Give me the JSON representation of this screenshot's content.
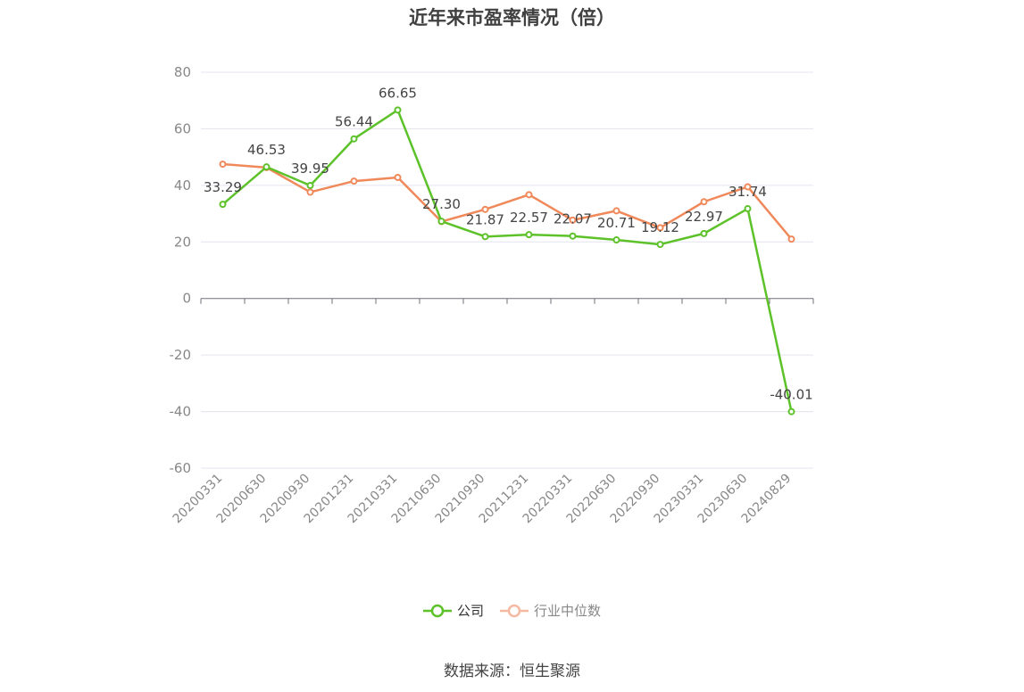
{
  "chart_data": {
    "type": "line",
    "title": "近年来市盈率情况（倍）",
    "categories": [
      "20200331",
      "20200630",
      "20200930",
      "20201231",
      "20210331",
      "20210630",
      "20210930",
      "20211231",
      "20220331",
      "20220630",
      "20220930",
      "20230331",
      "20230630",
      "20240829"
    ],
    "ylim": [
      -60,
      80
    ],
    "yticks": [
      -60,
      -40,
      -20,
      0,
      20,
      40,
      60,
      80
    ],
    "grid": true,
    "legend_position": "bottom",
    "series": [
      {
        "name": "公司",
        "color": "#5dc22a",
        "values": [
          33.29,
          46.53,
          39.95,
          56.44,
          66.65,
          27.3,
          21.87,
          22.57,
          22.07,
          20.71,
          19.12,
          22.97,
          31.74,
          -40.01
        ],
        "labels": [
          "33.29",
          "46.53",
          "39.95",
          "56.44",
          "66.65",
          "27.30",
          "21.87",
          "22.57",
          "22.07",
          "20.71",
          "19.12",
          "22.97",
          "31.74",
          "-40.01"
        ]
      },
      {
        "name": "行业中位数",
        "color": "#f0895a",
        "values": [
          47.5,
          46.3,
          37.6,
          41.5,
          42.8,
          27.2,
          31.5,
          36.7,
          27.7,
          31.0,
          25.0,
          34.2,
          39.5,
          21.0
        ]
      }
    ]
  },
  "source": "数据来源：恒生聚源"
}
